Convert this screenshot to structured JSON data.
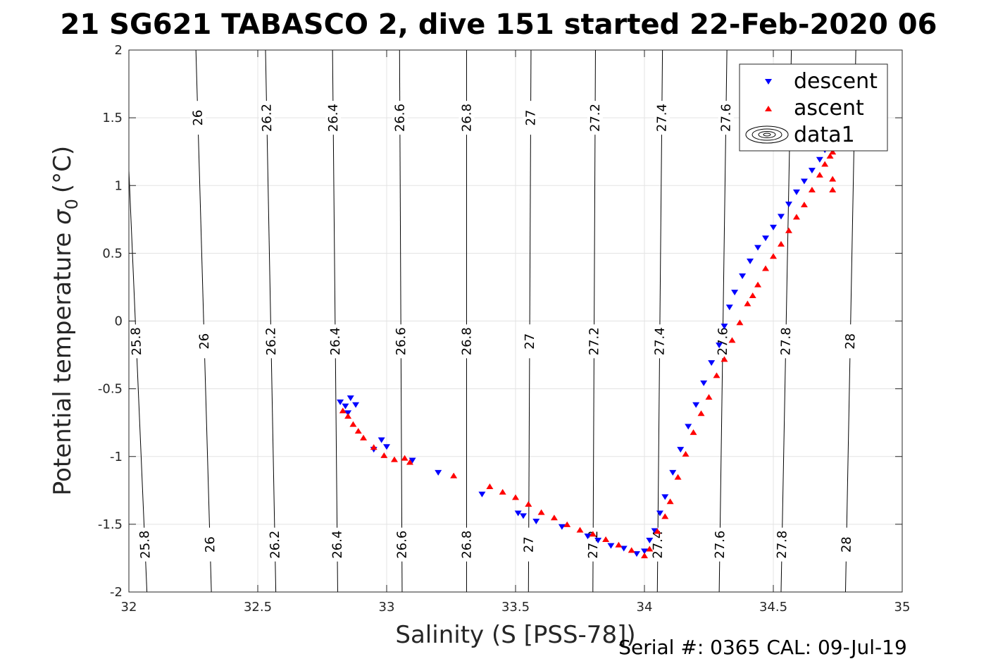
{
  "title": "21 SG621 TABASCO 2, dive 151 started 22-Feb-2020 06",
  "footer": {
    "serial_text": "Serial #: 0365  CAL: 09-Jul-19"
  },
  "chart_data": {
    "type": "scatter",
    "title": "21 SG621 TABASCO 2, dive 151 started 22-Feb-2020 06",
    "xlabel": "Salinity (S [PSS-78])",
    "ylabel": "Potential temperature",
    "ylabel_symbol": "σ",
    "ylabel_subscript": "0",
    "ylabel_unit": "(°C)",
    "xlim": [
      32,
      35
    ],
    "ylim": [
      -2,
      2
    ],
    "grid": true,
    "x_ticks": [
      "32",
      "32.5",
      "33",
      "33.5",
      "34",
      "34.5",
      "35"
    ],
    "y_ticks": [
      "-2",
      "-1.5",
      "-1",
      "-0.5",
      "0",
      "0.5",
      "1",
      "1.5",
      "2"
    ],
    "legend": {
      "position": "top-right",
      "entries": [
        "descent",
        "ascent",
        "data1"
      ]
    },
    "contours": {
      "levels": [
        25.8,
        26,
        26.2,
        26.4,
        26.6,
        26.8,
        27,
        27.2,
        27.4,
        27.6,
        27.8,
        28
      ],
      "level_labels": [
        "25.8",
        "26",
        "26.2",
        "26.4",
        "26.6",
        "26.8",
        "27",
        "27.2",
        "27.4",
        "27.6",
        "27.8",
        "28"
      ],
      "salinity_at_bottom": [
        32.07,
        32.32,
        32.57,
        32.81,
        33.06,
        33.31,
        33.55,
        33.8,
        34.05,
        34.29,
        34.53,
        34.78
      ],
      "salinity_at_top": [
        31.98,
        32.26,
        32.53,
        32.79,
        33.05,
        33.31,
        33.56,
        33.81,
        34.07,
        34.32,
        34.57,
        34.82
      ]
    },
    "series": [
      {
        "name": "descent",
        "color": "#0000ff",
        "marker": "triangle-down",
        "x": [
          32.82,
          32.84,
          32.86,
          32.88,
          32.85,
          32.95,
          32.98,
          33.0,
          33.1,
          33.2,
          33.37,
          33.51,
          33.53,
          33.58,
          33.68,
          33.78,
          33.82,
          33.87,
          33.92,
          33.97,
          34.0,
          34.02,
          34.04,
          34.06,
          34.08,
          34.11,
          34.14,
          34.17,
          34.2,
          34.23,
          34.26,
          34.29,
          34.31,
          34.33,
          34.35,
          34.38,
          34.41,
          34.44,
          34.47,
          34.5,
          34.53,
          34.56,
          34.59,
          34.62,
          34.65,
          34.68,
          34.7,
          34.72
        ],
        "y": [
          -0.6,
          -0.63,
          -0.57,
          -0.62,
          -0.68,
          -0.95,
          -0.88,
          -0.93,
          -1.03,
          -1.12,
          -1.28,
          -1.42,
          -1.44,
          -1.48,
          -1.52,
          -1.59,
          -1.62,
          -1.66,
          -1.68,
          -1.72,
          -1.7,
          -1.62,
          -1.55,
          -1.42,
          -1.3,
          -1.12,
          -0.95,
          -0.78,
          -0.62,
          -0.46,
          -0.31,
          -0.18,
          -0.04,
          0.1,
          0.21,
          0.33,
          0.44,
          0.54,
          0.61,
          0.69,
          0.77,
          0.86,
          0.95,
          1.03,
          1.11,
          1.19,
          1.26,
          1.3
        ]
      },
      {
        "name": "ascent",
        "color": "#ff0000",
        "marker": "triangle-up",
        "x": [
          32.83,
          32.85,
          32.87,
          32.89,
          32.91,
          32.95,
          32.99,
          33.03,
          33.07,
          33.09,
          33.26,
          33.4,
          33.45,
          33.5,
          33.55,
          33.6,
          33.65,
          33.7,
          33.75,
          33.8,
          33.85,
          33.9,
          33.95,
          34.0,
          34.02,
          34.05,
          34.08,
          34.1,
          34.13,
          34.16,
          34.19,
          34.22,
          34.25,
          34.28,
          34.31,
          34.34,
          34.37,
          34.4,
          34.42,
          34.44,
          34.47,
          34.5,
          34.53,
          34.56,
          34.59,
          34.62,
          34.65,
          34.68,
          34.7,
          34.72,
          34.73,
          34.73,
          34.73
        ],
        "y": [
          -0.66,
          -0.7,
          -0.76,
          -0.81,
          -0.86,
          -0.93,
          -0.99,
          -1.02,
          -1.01,
          -1.04,
          -1.14,
          -1.22,
          -1.26,
          -1.3,
          -1.35,
          -1.41,
          -1.45,
          -1.5,
          -1.54,
          -1.57,
          -1.61,
          -1.65,
          -1.69,
          -1.73,
          -1.68,
          -1.55,
          -1.44,
          -1.33,
          -1.15,
          -0.98,
          -0.82,
          -0.68,
          -0.56,
          -0.4,
          -0.28,
          -0.14,
          -0.01,
          0.13,
          0.19,
          0.27,
          0.39,
          0.48,
          0.57,
          0.67,
          0.77,
          0.86,
          0.97,
          1.08,
          1.16,
          1.22,
          1.05,
          0.97,
          1.25
        ]
      }
    ]
  }
}
